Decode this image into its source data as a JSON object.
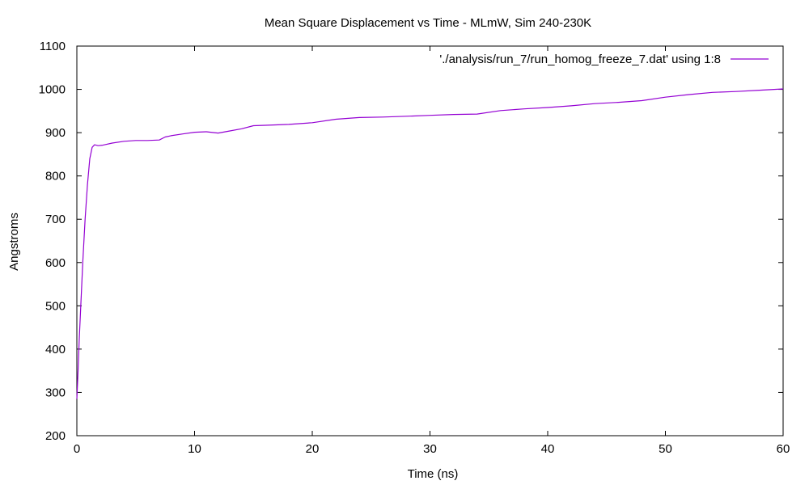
{
  "chart_data": {
    "type": "line",
    "title": "Mean Square Displacement vs Time - MLmW, Sim 240-230K",
    "xlabel": "Time (ns)",
    "ylabel": "Angstroms",
    "xlim": [
      0,
      60
    ],
    "ylim": [
      200,
      1100
    ],
    "xticks": [
      0,
      10,
      20,
      30,
      40,
      50,
      60
    ],
    "yticks": [
      200,
      300,
      400,
      500,
      600,
      700,
      800,
      900,
      1000,
      1100
    ],
    "grid": false,
    "legend_position": "top-right",
    "series": [
      {
        "name": "'./analysis/run_7/run_homog_freeze_7.dat' using 1:8",
        "color": "#9400d3",
        "x": [
          0,
          0.1,
          0.2,
          0.35,
          0.5,
          0.7,
          0.9,
          1.1,
          1.3,
          1.5,
          1.8,
          2.2,
          3,
          4,
          5,
          6,
          7,
          7.5,
          8,
          9,
          10,
          11,
          12,
          13,
          14,
          15,
          16,
          18,
          20,
          22,
          24,
          26,
          28,
          30,
          32,
          34,
          36,
          38,
          40,
          42,
          44,
          46,
          48,
          50,
          52,
          54,
          56,
          58,
          60
        ],
        "y": [
          285,
          350,
          420,
          510,
          600,
          700,
          780,
          840,
          866,
          872,
          870,
          871,
          876,
          880,
          882,
          882,
          883,
          890,
          893,
          897,
          901,
          902,
          899,
          904,
          909,
          916,
          917,
          919,
          923,
          931,
          935,
          936,
          938,
          940,
          942,
          943,
          951,
          955,
          958,
          962,
          967,
          970,
          974,
          982,
          988,
          993,
          995,
          998,
          1001
        ]
      }
    ]
  }
}
